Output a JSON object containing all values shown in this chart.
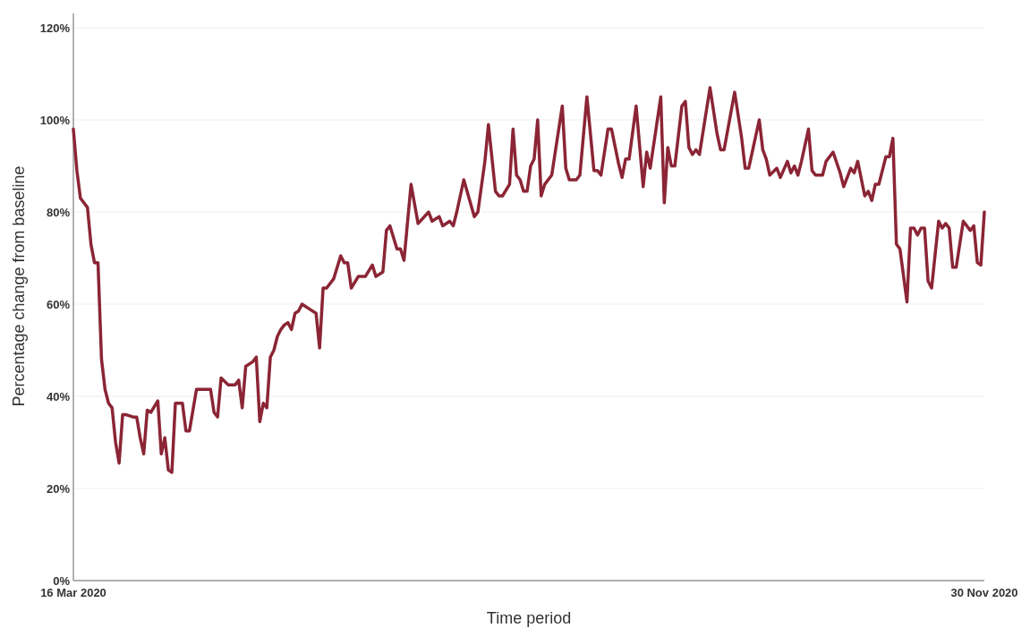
{
  "chart_data": {
    "type": "line",
    "xlabel": "Time period",
    "ylabel": "Percentage change from baseline",
    "x": [
      "2020-03-16",
      "2020-03-17",
      "2020-03-18",
      "2020-03-20",
      "2020-03-21",
      "2020-03-22",
      "2020-03-23",
      "2020-03-24",
      "2020-03-25",
      "2020-03-26",
      "2020-03-27",
      "2020-03-28",
      "2020-03-29",
      "2020-03-30",
      "2020-03-31",
      "2020-04-02",
      "2020-04-03",
      "2020-04-04",
      "2020-04-05",
      "2020-04-06",
      "2020-04-07",
      "2020-04-09",
      "2020-04-10",
      "2020-04-11",
      "2020-04-12",
      "2020-04-13",
      "2020-04-14",
      "2020-04-16",
      "2020-04-17",
      "2020-04-18",
      "2020-04-20",
      "2020-04-23",
      "2020-04-24",
      "2020-04-25",
      "2020-04-26",
      "2020-04-27",
      "2020-04-29",
      "2020-05-01",
      "2020-05-02",
      "2020-05-03",
      "2020-05-04",
      "2020-05-06",
      "2020-05-07",
      "2020-05-08",
      "2020-05-09",
      "2020-05-10",
      "2020-05-11",
      "2020-05-12",
      "2020-05-13",
      "2020-05-14",
      "2020-05-15",
      "2020-05-16",
      "2020-05-17",
      "2020-05-18",
      "2020-05-19",
      "2020-05-20",
      "2020-05-22",
      "2020-05-24",
      "2020-05-25",
      "2020-05-26",
      "2020-05-27",
      "2020-05-29",
      "2020-05-31",
      "2020-06-01",
      "2020-06-02",
      "2020-06-03",
      "2020-06-05",
      "2020-06-07",
      "2020-06-09",
      "2020-06-10",
      "2020-06-12",
      "2020-06-13",
      "2020-06-14",
      "2020-06-16",
      "2020-06-17",
      "2020-06-18",
      "2020-06-20",
      "2020-06-22",
      "2020-06-25",
      "2020-06-26",
      "2020-06-28",
      "2020-06-29",
      "2020-07-01",
      "2020-07-02",
      "2020-07-03",
      "2020-07-05",
      "2020-07-08",
      "2020-07-09",
      "2020-07-11",
      "2020-07-12",
      "2020-07-14",
      "2020-07-15",
      "2020-07-16",
      "2020-07-18",
      "2020-07-19",
      "2020-07-20",
      "2020-07-21",
      "2020-07-22",
      "2020-07-23",
      "2020-07-24",
      "2020-07-25",
      "2020-07-26",
      "2020-07-27",
      "2020-07-28",
      "2020-07-30",
      "2020-08-02",
      "2020-08-03",
      "2020-08-04",
      "2020-08-06",
      "2020-08-07",
      "2020-08-09",
      "2020-08-11",
      "2020-08-12",
      "2020-08-13",
      "2020-08-15",
      "2020-08-16",
      "2020-08-18",
      "2020-08-19",
      "2020-08-20",
      "2020-08-21",
      "2020-08-23",
      "2020-08-25",
      "2020-08-26",
      "2020-08-27",
      "2020-08-30",
      "2020-08-31",
      "2020-09-01",
      "2020-09-02",
      "2020-09-03",
      "2020-09-05",
      "2020-09-06",
      "2020-09-07",
      "2020-09-08",
      "2020-09-09",
      "2020-09-10",
      "2020-09-13",
      "2020-09-15",
      "2020-09-16",
      "2020-09-17",
      "2020-09-20",
      "2020-09-22",
      "2020-09-23",
      "2020-09-24",
      "2020-09-27",
      "2020-09-28",
      "2020-09-29",
      "2020-09-30",
      "2020-10-02",
      "2020-10-03",
      "2020-10-05",
      "2020-10-06",
      "2020-10-07",
      "2020-10-08",
      "2020-10-09",
      "2020-10-11",
      "2020-10-12",
      "2020-10-13",
      "2020-10-15",
      "2020-10-16",
      "2020-10-18",
      "2020-10-20",
      "2020-10-21",
      "2020-10-23",
      "2020-10-24",
      "2020-10-25",
      "2020-10-27",
      "2020-10-28",
      "2020-10-29",
      "2020-10-30",
      "2020-10-31",
      "2020-11-02",
      "2020-11-03",
      "2020-11-04",
      "2020-11-05",
      "2020-11-06",
      "2020-11-08",
      "2020-11-09",
      "2020-11-10",
      "2020-11-11",
      "2020-11-12",
      "2020-11-13",
      "2020-11-14",
      "2020-11-15",
      "2020-11-17",
      "2020-11-18",
      "2020-11-19",
      "2020-11-20",
      "2020-11-21",
      "2020-11-22",
      "2020-11-24",
      "2020-11-26",
      "2020-11-27",
      "2020-11-28",
      "2020-11-29",
      "2020-11-30"
    ],
    "series": [
      {
        "color": "#8b2535",
        "values": [
          98,
          89,
          83,
          81,
          73,
          69,
          69,
          48,
          41.5,
          38.5,
          37.5,
          30,
          25.5,
          36,
          36,
          35.5,
          35.5,
          31,
          27.5,
          37,
          36.5,
          39,
          27.5,
          31,
          24,
          23.5,
          38.5,
          38.5,
          32.5,
          32.5,
          41.5,
          41.5,
          41.5,
          36.5,
          35.5,
          44,
          42.5,
          42.5,
          43.5,
          37.5,
          46.5,
          47.5,
          48.5,
          34.5,
          38.5,
          37.5,
          48.5,
          50,
          53,
          54.5,
          55.5,
          56,
          54.5,
          58,
          58.5,
          60,
          59,
          58,
          50.5,
          63.5,
          63.5,
          65.5,
          70.5,
          69,
          69,
          63.5,
          66,
          66,
          68.5,
          66,
          67,
          76,
          77,
          72,
          72,
          69.5,
          86,
          77.5,
          80,
          78,
          79,
          77,
          78,
          77,
          80,
          87,
          79,
          80,
          91,
          99,
          84.5,
          83.5,
          83.5,
          86,
          98,
          88,
          87,
          84.5,
          84.5,
          90,
          91.5,
          100,
          83.5,
          86,
          88,
          103,
          89.5,
          87,
          87,
          88,
          105,
          89,
          89,
          88,
          98,
          98,
          90.5,
          87.5,
          91.5,
          91.5,
          103,
          85.5,
          93,
          89.5,
          105,
          82,
          94,
          90,
          90,
          103,
          104,
          94,
          92.5,
          93.5,
          92.5,
          107,
          97,
          93.5,
          93.5,
          106,
          96,
          89.5,
          89.5,
          100,
          93.5,
          91.5,
          88,
          89.5,
          87.5,
          91,
          88.5,
          90,
          88,
          91,
          98,
          89,
          88,
          88,
          91,
          93,
          88.5,
          85.5,
          89.5,
          88.5,
          91,
          83.5,
          84.5,
          82.5,
          86,
          86,
          92,
          92,
          96,
          73,
          72,
          60.5,
          76.5,
          76.5,
          75,
          76.5,
          76.5,
          65,
          63.5,
          78,
          76.5,
          77.5,
          76.5,
          68,
          68,
          78,
          76,
          77,
          69,
          68.5,
          80
        ]
      }
    ],
    "xlim": [
      "2020-03-16",
      "2020-11-30"
    ],
    "xticks": [
      {
        "value": "2020-03-16",
        "label": "16 Mar 2020"
      },
      {
        "value": "2020-11-30",
        "label": "30 Nov 2020"
      }
    ],
    "ylim": [
      0,
      120
    ],
    "yticks": [
      {
        "value": 0,
        "label": "0%"
      },
      {
        "value": 20,
        "label": "20%"
      },
      {
        "value": 40,
        "label": "40%"
      },
      {
        "value": 60,
        "label": "60%"
      },
      {
        "value": 80,
        "label": "80%"
      },
      {
        "value": 100,
        "label": "100%"
      },
      {
        "value": 120,
        "label": "120%"
      }
    ],
    "grid": "y",
    "marker": "none",
    "line_style": "solid"
  }
}
